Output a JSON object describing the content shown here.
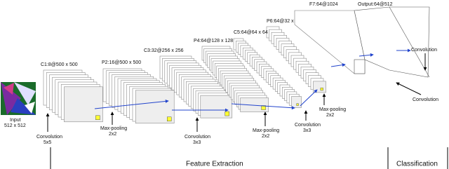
{
  "input": {
    "label": "Input",
    "size": "512 x 512"
  },
  "layers": [
    "C1:8@500 x 500",
    "P2:16@500 x 500",
    "C3:32@256 x 256",
    "P4:64@128 x 128",
    "C5:64@64 x 64",
    "P6:64@32 x 32",
    "F7:64@1024",
    "Output:64@512"
  ],
  "operations": [
    {
      "name": "Convolution",
      "kernel": "5x5"
    },
    {
      "name": "Max-pooling",
      "kernel": "2x2"
    },
    {
      "name": "Convolution",
      "kernel": "3x3"
    },
    {
      "name": "Max-pooling",
      "kernel": "2x2"
    },
    {
      "name": "Convolution",
      "kernel": "3x3"
    },
    {
      "name": "Max-pooling",
      "kernel": "2x2"
    },
    {
      "name": "Convolution"
    },
    {
      "name": "Convolution"
    }
  ],
  "sections": [
    "Feature Extraction",
    "Classification"
  ]
}
